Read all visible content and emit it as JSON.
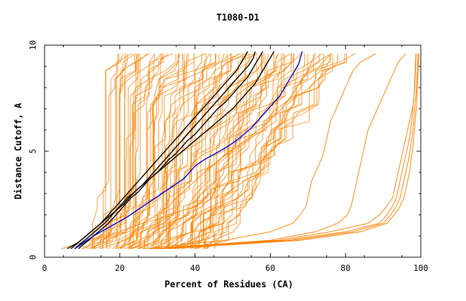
{
  "chart_data": {
    "type": "line",
    "title": "T1080-D1",
    "xlabel": "Percent of Residues (CA)",
    "ylabel": "Distance Cutoff, A",
    "xlim": [
      0,
      100
    ],
    "ylim": [
      0,
      10
    ],
    "x_ticks": [
      "0",
      "20",
      "40",
      "60",
      "80",
      "100"
    ],
    "y_ticks": [
      "0",
      "5",
      "10"
    ],
    "grid": false,
    "colors": {
      "bulk": "#ff8000",
      "highlight": "#000000",
      "blue": "#0000cc",
      "axes": "#000000"
    },
    "y_levels": [
      0.4,
      0.8,
      1.2,
      1.6,
      2.0,
      2.4,
      2.8,
      3.2,
      3.6,
      4.0,
      4.4,
      4.8,
      5.2,
      5.6,
      6.0,
      6.4,
      6.8,
      7.2,
      7.6,
      8.0,
      8.4,
      8.8,
      9.2,
      9.6
    ],
    "series_highlight": [
      {
        "color": "black",
        "x": [
          6,
          9,
          11,
          13,
          15,
          16.5,
          18,
          19.5,
          21,
          22.5,
          24,
          25.5,
          27,
          28.5,
          30,
          31.5,
          33,
          34.5,
          36,
          37.5,
          39,
          40.5,
          42,
          43.5,
          45,
          46.5,
          48,
          49.5,
          51,
          52,
          53,
          54
        ]
      },
      {
        "color": "black",
        "x": [
          8,
          10,
          12,
          14,
          16,
          17.5,
          19,
          21,
          22.5,
          24,
          26,
          27.5,
          29,
          30.5,
          32,
          33.5,
          35,
          36.5,
          38,
          39.5,
          41,
          42.5,
          44,
          45.5,
          47,
          48.5,
          50,
          51.5,
          53,
          54.5,
          55.5,
          56
        ]
      },
      {
        "color": "black",
        "x": [
          9,
          11,
          13,
          15,
          17,
          18.5,
          20,
          21.5,
          23,
          25,
          26.5,
          28,
          30,
          31.5,
          33,
          35,
          36.5,
          38,
          40,
          41.5,
          43,
          44.5,
          46,
          48,
          49.5,
          51,
          52.5,
          54,
          55,
          56,
          57,
          58
        ]
      },
      {
        "color": "black",
        "x": [
          7,
          9,
          11,
          13,
          15,
          17,
          19,
          20.5,
          22,
          24,
          26,
          28,
          30,
          32,
          34,
          36,
          38,
          40,
          42,
          44,
          46,
          48,
          50,
          51.5,
          53,
          54.5,
          56,
          57,
          58,
          59,
          60,
          61
        ]
      },
      {
        "color": "blue",
        "x": [
          8,
          10.5,
          13,
          16,
          19,
          22,
          24.5,
          27,
          29.5,
          32,
          34.5,
          37,
          38.5,
          40,
          42.5,
          45.5,
          48.5,
          51,
          53,
          55,
          56.5,
          58,
          59.5,
          61,
          62.5,
          63.5,
          64.5,
          65.5,
          66.5,
          67.5,
          68,
          68.5
        ]
      }
    ],
    "series_outliers": [
      {
        "x": [
          4.5,
          12,
          20,
          26,
          30,
          33,
          35,
          37.5,
          40,
          42.5,
          45,
          48,
          51,
          54,
          57,
          59.5,
          62,
          64,
          65.5,
          67,
          68.5,
          70,
          71,
          72
        ]
      },
      {
        "x": [
          26,
          48,
          60,
          66,
          68,
          69.5,
          70,
          70.5,
          71,
          72,
          73,
          74,
          74.5,
          75,
          75.5,
          76,
          77,
          78,
          79,
          80,
          81,
          82,
          84,
          88
        ]
      },
      {
        "x": [
          28,
          60,
          72,
          78,
          80.5,
          81.5,
          82,
          82.5,
          83,
          83.5,
          84,
          84.5,
          85,
          85.5,
          86,
          87,
          88,
          89,
          90,
          91,
          92,
          93,
          94,
          96
        ]
      },
      {
        "x": [
          29,
          62,
          76,
          86,
          89,
          91,
          92.5,
          93,
          93.5,
          94,
          94.5,
          95,
          95.5,
          96,
          96.5,
          97,
          97.5,
          98,
          98.2,
          98.4,
          98.5,
          98.6,
          98.7,
          98.8
        ]
      },
      {
        "x": [
          30,
          64,
          80,
          89,
          91,
          92.5,
          93.5,
          94,
          94.5,
          95,
          95.5,
          96,
          96.5,
          97,
          97.3,
          97.6,
          97.8,
          98,
          98.2,
          98.3,
          98.4,
          98.5,
          98.6,
          98.7
        ]
      },
      {
        "x": [
          31,
          66,
          82,
          90,
          92,
          93.5,
          94.5,
          95,
          95.5,
          96,
          96.5,
          97,
          97.3,
          97.6,
          97.9,
          98.1,
          98.3,
          98.5,
          98.7,
          98.9,
          99.0,
          99.1,
          99.2,
          99.3
        ]
      },
      {
        "x": [
          33,
          68,
          84,
          91,
          93,
          94.5,
          95.5,
          96,
          96.5,
          97,
          97.3,
          97.6,
          97.9,
          98.1,
          98.3,
          98.5,
          98.7,
          98.9,
          99.0,
          99.1,
          99.2,
          99.3,
          99.4,
          99.5
        ]
      }
    ]
  }
}
